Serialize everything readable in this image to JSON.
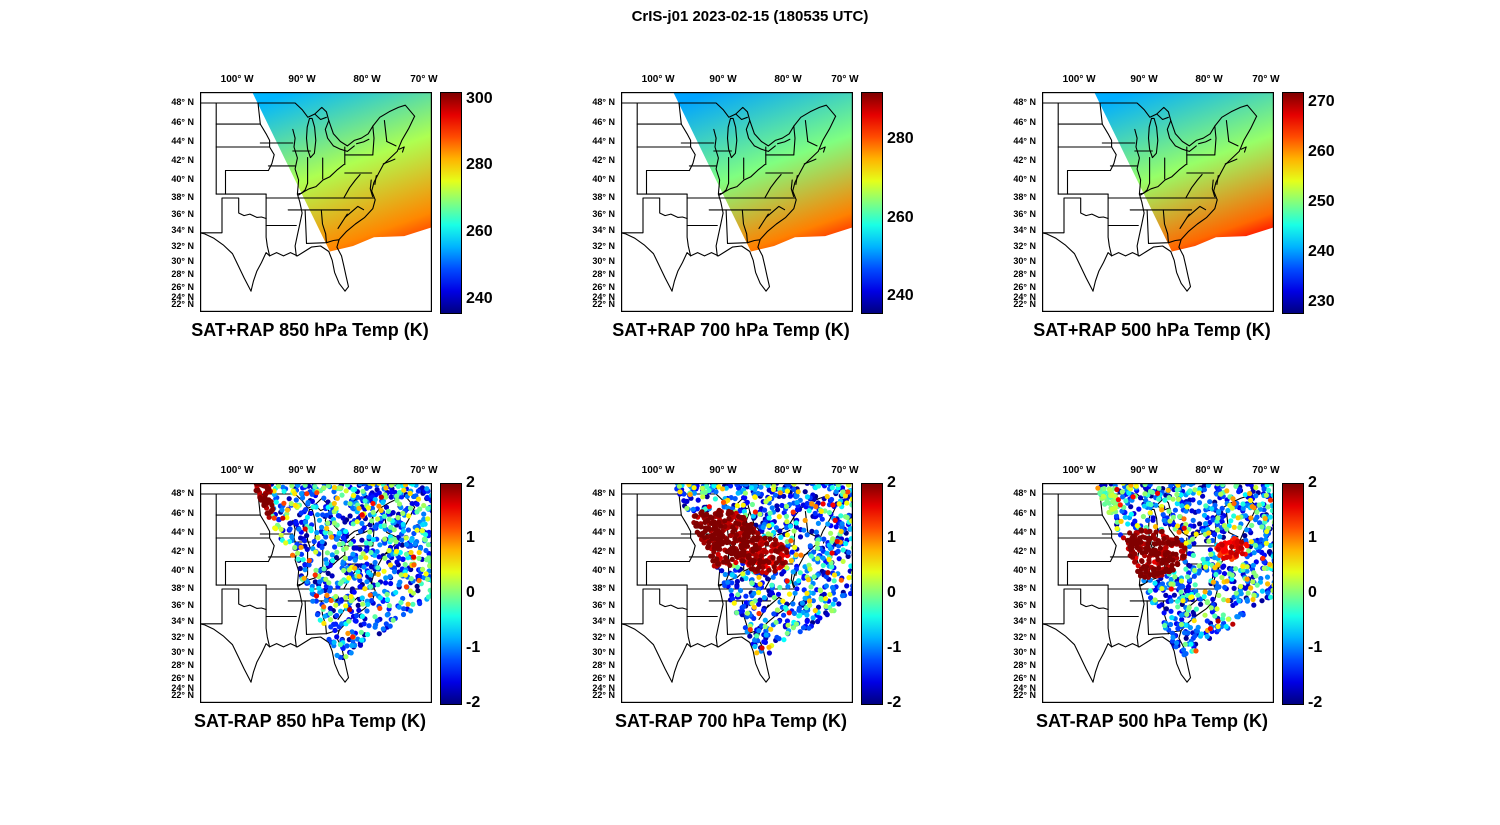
{
  "suptitle": "CrIS-j01 2023-02-15 (180535 UTC)",
  "colormap": "jet",
  "geo_axes": {
    "lon_ticks": [
      "100° W",
      "90° W",
      "80° W",
      "70° W"
    ],
    "lat_ticks": [
      "48° N",
      "46° N",
      "44° N",
      "42° N",
      "40° N",
      "38° N",
      "36° N",
      "34° N",
      "32° N",
      "30° N",
      "28° N",
      "26° N",
      "24° N",
      "22° N"
    ]
  },
  "chart_data": [
    {
      "type": "heatmap",
      "title": "SAT+RAP 850 hPa Temp (K)",
      "quantity": "SAT+RAP 850 hPa temperature",
      "units": "K",
      "colorbar": {
        "vmin": 236,
        "vmax": 302,
        "ticks": [
          300,
          280,
          260,
          240
        ]
      },
      "field": {
        "north_value": 256,
        "mid_value": 272,
        "south_value": 285
      },
      "coverage": "satellite swath over eastern US; no data southwest of diagonal swath edge"
    },
    {
      "type": "heatmap",
      "title": "SAT+RAP 700 hPa Temp (K)",
      "quantity": "SAT+RAP 700 hPa temperature",
      "units": "K",
      "colorbar": {
        "vmin": 236,
        "vmax": 292,
        "ticks": [
          280,
          260,
          240
        ]
      },
      "field": {
        "north_value": 252,
        "mid_value": 264,
        "south_value": 278
      },
      "coverage": "satellite swath over eastern US; no data southwest of diagonal swath edge"
    },
    {
      "type": "heatmap",
      "title": "SAT+RAP 500 hPa Temp (K)",
      "quantity": "SAT+RAP 500 hPa temperature",
      "units": "K",
      "colorbar": {
        "vmin": 228,
        "vmax": 272,
        "ticks": [
          270,
          260,
          250,
          240,
          230
        ]
      },
      "field": {
        "north_value": 241,
        "mid_value": 251,
        "south_value": 262
      },
      "coverage": "satellite swath over eastern US; no data southwest of diagonal swath edge"
    },
    {
      "type": "scatter",
      "title": "SAT-RAP 850 hPa Temp (K)",
      "quantity": "SAT minus RAP 850 hPa temperature difference",
      "units": "K",
      "colorbar": {
        "vmin": -2,
        "vmax": 2,
        "ticks": [
          2,
          1,
          0,
          -1,
          -2
        ]
      },
      "dots": {
        "seed": 8501,
        "count": 950,
        "warm_spots": [
          {
            "cx": 0.26,
            "cy": 0.1,
            "rx": 0.055,
            "ry": 0.13,
            "v": 1.95
          },
          {
            "cx": 0.36,
            "cy": 0.45,
            "rx": 0.03,
            "ry": 0.11,
            "v": 1.7
          },
          {
            "cx": 0.3,
            "cy": 0.24,
            "rx": 0.05,
            "ry": 0.07,
            "v": 0.3
          }
        ]
      },
      "summary": "mostly negative (dark blue) differences; strong warm cluster near northwest swath edge and a warm streak mid-swath"
    },
    {
      "type": "scatter",
      "title": "SAT-RAP 700 hPa Temp (K)",
      "quantity": "SAT minus RAP 700 hPa temperature difference",
      "units": "K",
      "colorbar": {
        "vmin": -2,
        "vmax": 2,
        "ticks": [
          2,
          1,
          0,
          -1,
          -2
        ]
      },
      "dots": {
        "seed": 7001,
        "count": 950,
        "warm_spots": [
          {
            "cx": 0.42,
            "cy": 0.25,
            "rx": 0.18,
            "ry": 0.13,
            "v": 1.95
          },
          {
            "cx": 0.62,
            "cy": 0.33,
            "rx": 0.1,
            "ry": 0.08,
            "v": 1.8
          },
          {
            "cx": 0.28,
            "cy": 0.45,
            "rx": 0.05,
            "ry": 0.08,
            "v": 1.2
          }
        ]
      },
      "summary": "large strongly positive (dark red) region across the upper Midwest; negative (blue) elsewhere"
    },
    {
      "type": "scatter",
      "title": "SAT-RAP 500 hPa Temp (K)",
      "quantity": "SAT minus RAP 500 hPa temperature difference",
      "units": "K",
      "colorbar": {
        "vmin": -2,
        "vmax": 2,
        "ticks": [
          2,
          1,
          0,
          -1,
          -2
        ]
      },
      "dots": {
        "seed": 5001,
        "count": 980,
        "warm_spots": [
          {
            "cx": 0.45,
            "cy": 0.32,
            "rx": 0.17,
            "ry": 0.11,
            "v": 1.9
          },
          {
            "cx": 0.82,
            "cy": 0.3,
            "rx": 0.07,
            "ry": 0.05,
            "v": 1.5
          },
          {
            "cx": 0.27,
            "cy": 0.09,
            "rx": 0.06,
            "ry": 0.07,
            "v": 0.0
          }
        ]
      },
      "summary": "strong positive band through the Great Lakes/Midwest; widespread negative dots elsewhere including offshore east coast"
    }
  ]
}
